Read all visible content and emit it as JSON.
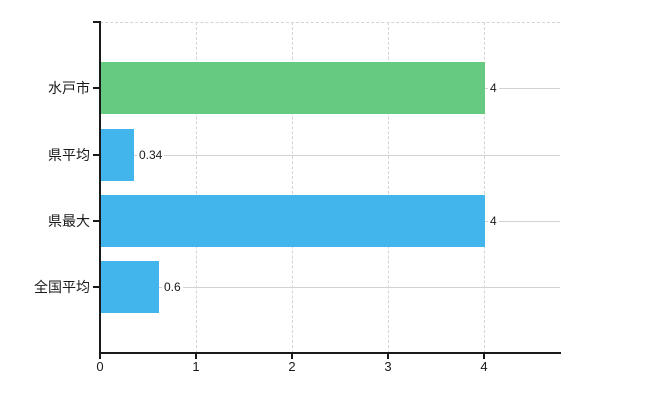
{
  "chart": {
    "background_color": "#ffffff",
    "axis_color": "#1a1a1a",
    "gridline_color": "#d4d4d4",
    "category_line_color": "#d2d2d2",
    "text_color": "#1a1a1a"
  },
  "chart_data": {
    "type": "bar",
    "orientation": "horizontal",
    "title": "",
    "xlabel": "",
    "ylabel": "",
    "categories": [
      "水戸市",
      "県平均",
      "県最大",
      "全国平均"
    ],
    "values": [
      4,
      0.34,
      4,
      0.6
    ],
    "value_labels": [
      "4",
      "0.34",
      "4",
      "0.6"
    ],
    "bar_colors": [
      "#66cb80",
      "#41b5ec",
      "#41b5ec",
      "#41b5ec"
    ],
    "x_ticks": [
      "0",
      "1",
      "2",
      "3",
      "4"
    ],
    "x_tick_values": [
      0,
      1,
      2,
      3,
      4
    ],
    "xlim": [
      0,
      4.79
    ],
    "grid": true,
    "legend": false
  }
}
